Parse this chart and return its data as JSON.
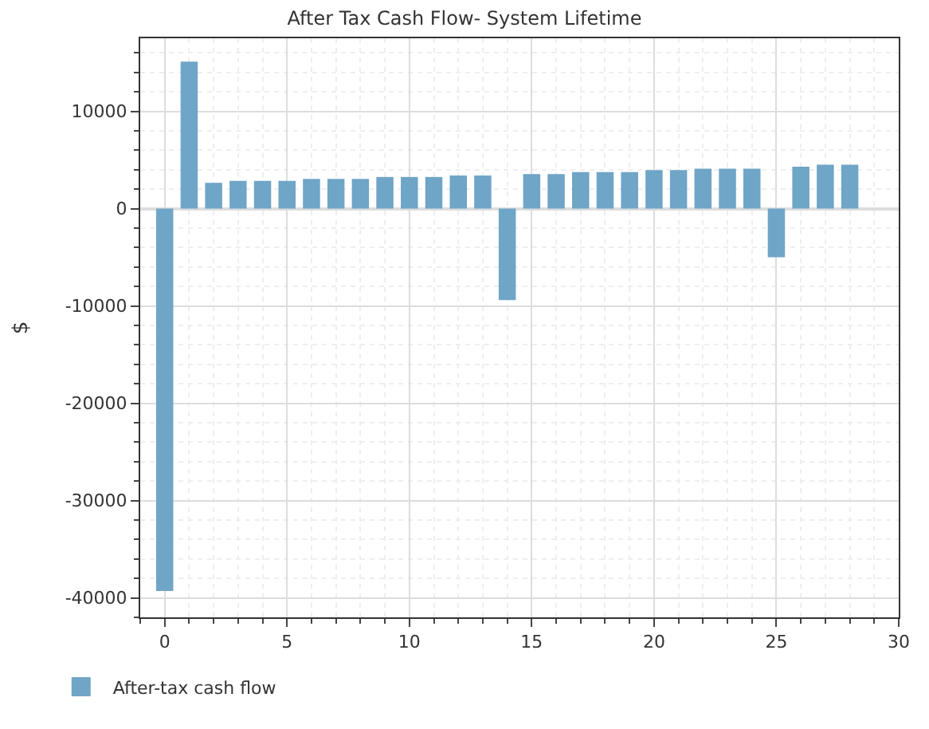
{
  "chart_data": {
    "type": "bar",
    "title": "After Tax Cash Flow- System Lifetime",
    "ylabel": "$",
    "x": [
      0,
      1,
      2,
      3,
      4,
      5,
      6,
      7,
      8,
      9,
      10,
      11,
      12,
      13,
      14,
      15,
      16,
      17,
      18,
      19,
      20,
      21,
      22,
      23,
      24,
      25,
      26,
      27,
      28
    ],
    "series": [
      {
        "name": "After-tax cash flow",
        "color": "#6fa5c7",
        "values": [
          -39300,
          15100,
          2650,
          2850,
          2850,
          2850,
          3050,
          3050,
          3050,
          3250,
          3250,
          3250,
          3400,
          3400,
          -9400,
          3550,
          3550,
          3750,
          3750,
          3750,
          3950,
          3950,
          4100,
          4100,
          4100,
          -5000,
          4300,
          4500,
          4500
        ]
      }
    ],
    "xlim": [
      -1,
      30
    ],
    "xticks": [
      0,
      5,
      10,
      15,
      20,
      25,
      30
    ],
    "ylim": [
      -42000,
      17500
    ],
    "yticks": [
      -40000,
      -30000,
      -20000,
      -10000,
      0,
      10000
    ],
    "grid": true,
    "legend": "bottom left"
  }
}
